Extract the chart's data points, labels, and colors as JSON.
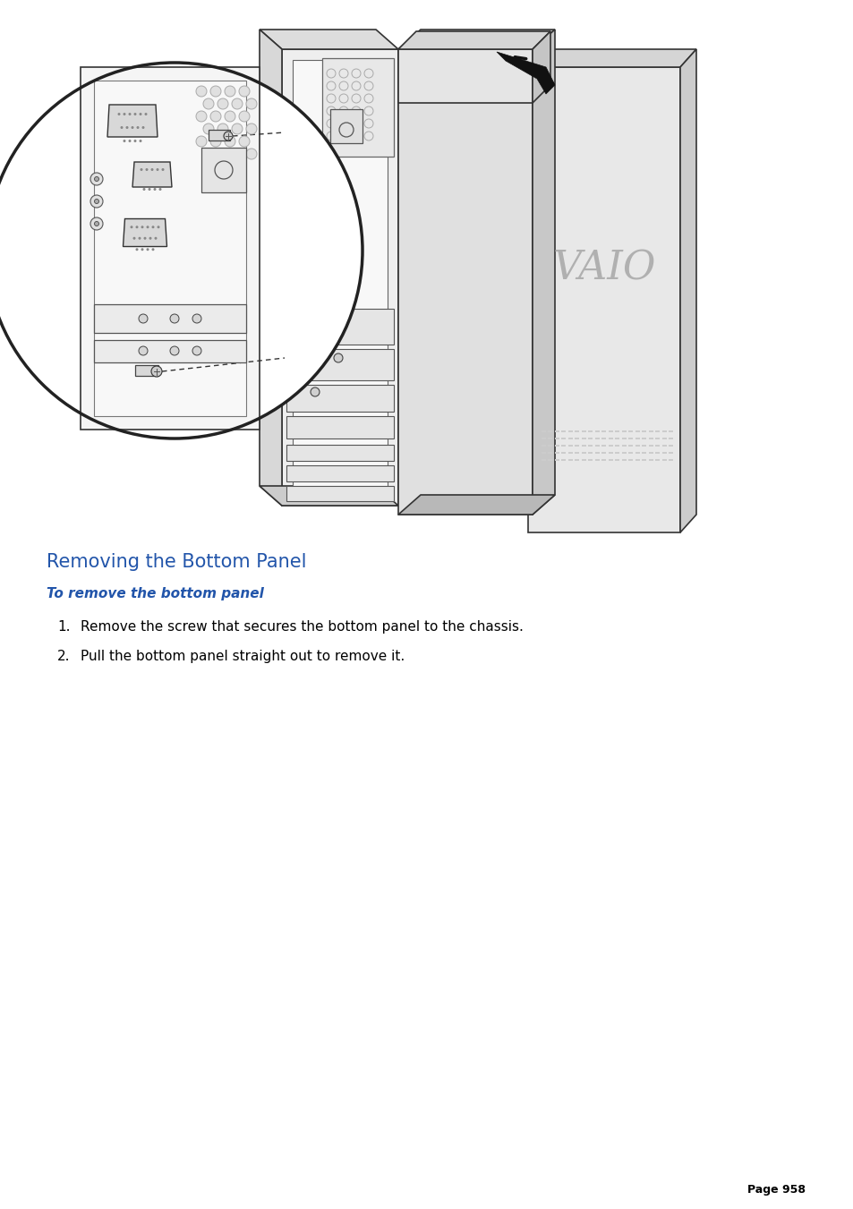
{
  "title": "Removing the Bottom Panel",
  "subtitle": "To remove the bottom panel",
  "step1": "Remove the screw that secures the bottom panel to the chassis.",
  "step2": "Pull the bottom panel straight out to remove it.",
  "page_number": "Page 958",
  "title_color": "#2255aa",
  "subtitle_color": "#2255aa",
  "body_color": "#000000",
  "bg_color": "#ffffff",
  "title_fontsize": 15,
  "subtitle_fontsize": 11,
  "body_fontsize": 11,
  "page_fontsize": 9
}
